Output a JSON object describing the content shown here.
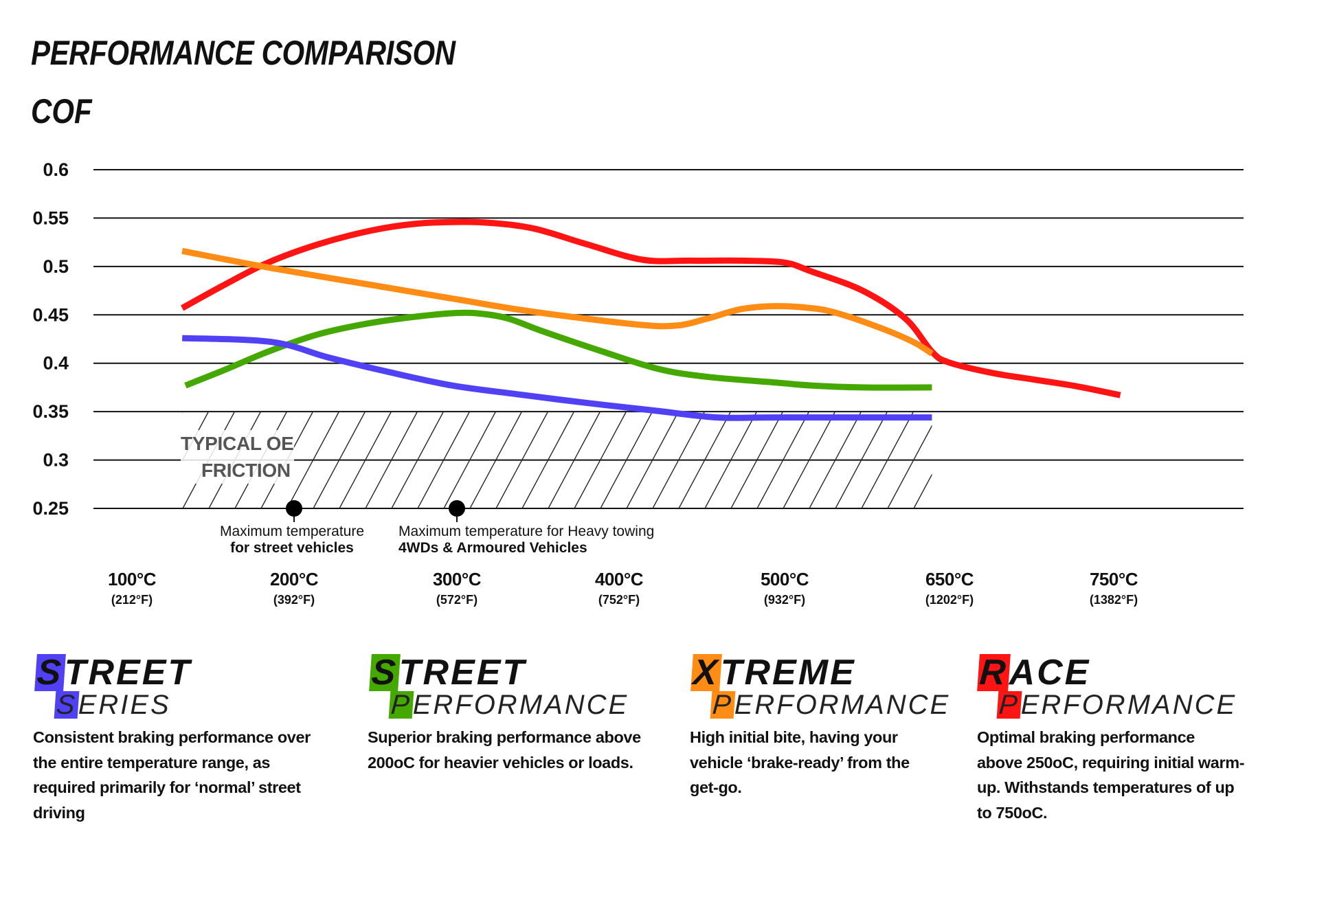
{
  "title": "PERFORMANCE COMPARISON",
  "chart_data": {
    "type": "line",
    "title": "PERFORMANCE COMPARISON",
    "ylabel": "COF",
    "xlabel": "",
    "ylim": [
      0.25,
      0.6
    ],
    "yticks": [
      "0.6",
      "0.55",
      "0.5",
      "0.45",
      "0.4",
      "0.35",
      "0.3",
      "0.25"
    ],
    "ytick_values": [
      0.6,
      0.55,
      0.5,
      0.45,
      0.4,
      0.35,
      0.3,
      0.25
    ],
    "x_unit": "°C",
    "xticks": [
      {
        "c": "100°C",
        "f": "(212°F)",
        "value": 100
      },
      {
        "c": "200°C",
        "f": "(392°F)",
        "value": 200
      },
      {
        "c": "300°C",
        "f": "(572°F)",
        "value": 300
      },
      {
        "c": "400°C",
        "f": "(752°F)",
        "value": 400
      },
      {
        "c": "500°C",
        "f": "(932°F)",
        "value": 500
      },
      {
        "c": "650°C",
        "f": "(1202°F)",
        "value": 650
      },
      {
        "c": "750°C",
        "f": "(1382°F)",
        "value": 750
      }
    ],
    "grid": true,
    "series": [
      {
        "id": "race",
        "color": "#ff1414",
        "x": [
          131,
          157,
          184,
          215,
          247,
          274,
          300,
          321,
          348,
          380,
          414,
          443,
          474,
          500,
          524,
          571,
          610,
          634,
          649,
          676,
          702,
          728,
          754
        ],
        "y": [
          0.457,
          0.481,
          0.504,
          0.523,
          0.537,
          0.544,
          0.546,
          0.545,
          0.539,
          0.523,
          0.507,
          0.506,
          0.506,
          0.504,
          0.495,
          0.475,
          0.446,
          0.412,
          0.401,
          0.39,
          0.383,
          0.376,
          0.367
        ]
      },
      {
        "id": "xtreme",
        "color": "#ff8c14",
        "x": [
          131,
          184,
          247,
          300,
          348,
          411,
          435,
          453,
          474,
          495,
          524,
          547,
          586,
          617,
          634
        ],
        "y": [
          0.516,
          0.499,
          0.481,
          0.466,
          0.453,
          0.44,
          0.439,
          0.446,
          0.456,
          0.459,
          0.457,
          0.452,
          0.437,
          0.422,
          0.41
        ]
      },
      {
        "id": "street-performance",
        "color": "#44a800",
        "x": [
          133,
          157,
          184,
          215,
          245,
          274,
          300,
          316,
          332,
          353,
          390,
          424,
          453,
          495,
          524,
          571,
          634
        ],
        "y": [
          0.377,
          0.393,
          0.412,
          0.43,
          0.441,
          0.448,
          0.452,
          0.451,
          0.446,
          0.433,
          0.412,
          0.394,
          0.386,
          0.38,
          0.377,
          0.375,
          0.375
        ]
      },
      {
        "id": "street-series",
        "color": "#5041f5",
        "x": [
          131,
          186,
          221,
          258,
          297,
          337,
          380,
          422,
          459,
          495,
          634
        ],
        "y": [
          0.426,
          0.422,
          0.406,
          0.391,
          0.377,
          0.368,
          0.359,
          0.351,
          0.344,
          0.344,
          0.344
        ]
      }
    ],
    "band": {
      "label_line1": "TYPICAL OE",
      "label_line2": "FRICTION",
      "x": [
        131,
        634
      ],
      "y": [
        0.25,
        0.35
      ]
    },
    "markers": [
      {
        "x": 200,
        "line1": "Maximum temperature",
        "line2": "for street vehicles"
      },
      {
        "x": 300,
        "line1": "Maximum temperature for Heavy towing",
        "line2": "4WDs & Armoured Vehicles"
      }
    ]
  },
  "legend": [
    {
      "word1_first": "S",
      "word1_rest": "TREET",
      "word2_first": "S",
      "word2_rest": "ERIES",
      "color": "#5041f5",
      "lines": [
        "Consistent braking performance over",
        "the entire temperature range, as",
        "required primarily for ‘normal’ street",
        "driving"
      ]
    },
    {
      "word1_first": "S",
      "word1_rest": "TREET",
      "word2_first": "P",
      "word2_rest": "ERFORMANCE",
      "color": "#44a800",
      "lines": [
        "Superior braking performance above",
        "200oC for heavier vehicles or loads."
      ]
    },
    {
      "word1_first": "X",
      "word1_rest": "TREME",
      "word2_first": "P",
      "word2_rest": "ERFORMANCE",
      "color": "#ff8c14",
      "lines": [
        "High initial bite, having your",
        "vehicle ‘brake-ready’ from the",
        "get-go."
      ]
    },
    {
      "word1_first": "R",
      "word1_rest": "ACE",
      "word2_first": "P",
      "word2_rest": "ERFORMANCE",
      "color": "#ff1414",
      "lines": [
        "Optimal braking performance",
        "above 250oC, requiring initial warm-",
        "up. Withstands temperatures of up",
        "to 750oC."
      ]
    }
  ]
}
